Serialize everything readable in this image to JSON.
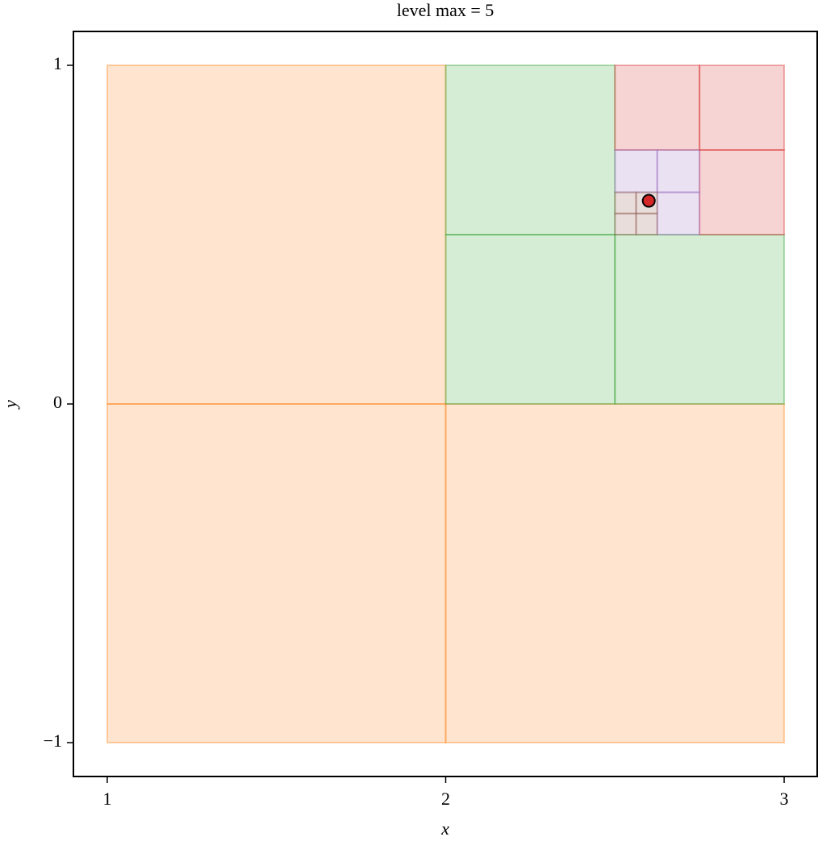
{
  "chart_data": {
    "type": "quadtree",
    "title": "level max = 5",
    "x_label": "x",
    "y_label": "y",
    "xlim": [
      0.9,
      3.1
    ],
    "ylim": [
      -1.1,
      1.1
    ],
    "xticks": [
      1,
      2,
      3
    ],
    "yticks": [
      {
        "value": -1,
        "label": "−1"
      },
      0,
      1
    ],
    "levels": [
      {
        "color": "#ff7f0e",
        "cells": [
          [
            1,
            2,
            -1,
            0
          ],
          [
            1,
            2,
            0,
            1
          ],
          [
            2,
            3,
            -1,
            0
          ]
        ]
      },
      {
        "color": "#2ca02c",
        "cells": [
          [
            2,
            2.5,
            0,
            0.5
          ],
          [
            2.5,
            3,
            0,
            0.5
          ],
          [
            2,
            2.5,
            0.5,
            1
          ]
        ]
      },
      {
        "color": "#d62728",
        "cells": [
          [
            2.5,
            2.75,
            0.75,
            1
          ],
          [
            2.75,
            3,
            0.75,
            1
          ],
          [
            2.75,
            3,
            0.5,
            0.75
          ]
        ]
      },
      {
        "color": "#9467bd",
        "cells": [
          [
            2.5,
            2.625,
            0.625,
            0.75
          ],
          [
            2.625,
            2.75,
            0.625,
            0.75
          ],
          [
            2.625,
            2.75,
            0.5,
            0.625
          ]
        ]
      },
      {
        "color": "#8c564b",
        "cells": [
          [
            2.5,
            2.5625,
            0.5,
            0.5625
          ],
          [
            2.5625,
            2.625,
            0.5,
            0.5625
          ],
          [
            2.5,
            2.5625,
            0.5625,
            0.625
          ],
          [
            2.5625,
            2.625,
            0.5625,
            0.625
          ]
        ]
      }
    ],
    "point": {
      "x": 2.6,
      "y": 0.6,
      "color": "#d62728"
    }
  }
}
